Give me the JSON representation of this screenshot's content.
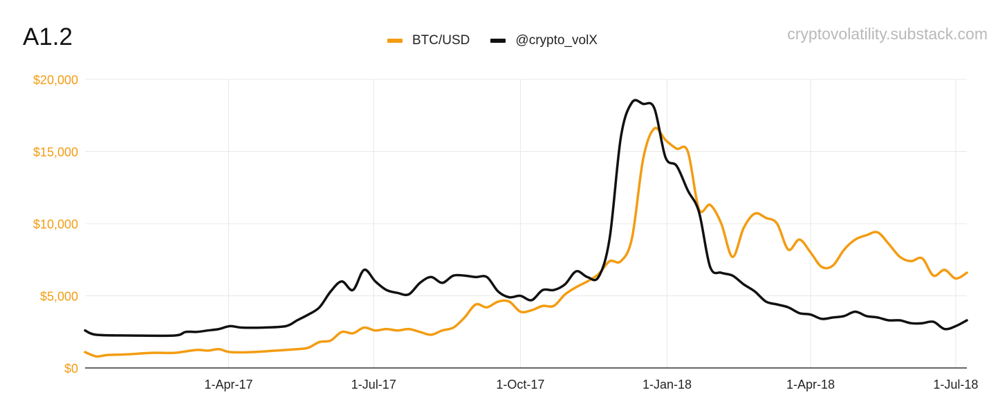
{
  "chart_data": {
    "type": "line",
    "title": "A1.2",
    "watermark": "cryptovolatility.substack.com",
    "xlabel": "",
    "ylabel": "",
    "x_ticks": [
      "1-Apr-17",
      "1-Jul-17",
      "1-Oct-17",
      "1-Jan-18",
      "1-Apr-18",
      "1-Jul-18"
    ],
    "y_ticks": [
      "$0",
      "$5,000",
      "$10,000",
      "$15,000",
      "$20,000"
    ],
    "xlim": [
      "2017-01-01",
      "2018-07-08"
    ],
    "ylim": [
      0,
      20000
    ],
    "legend_position": "top",
    "grid": true,
    "series": [
      {
        "name": "BTC/USD",
        "color": "#f39c12",
        "points": [
          [
            "2017-01-01",
            1100
          ],
          [
            "2017-01-08",
            800
          ],
          [
            "2017-01-15",
            900
          ],
          [
            "2017-01-29",
            950
          ],
          [
            "2017-02-12",
            1050
          ],
          [
            "2017-02-26",
            1050
          ],
          [
            "2017-03-12",
            1250
          ],
          [
            "2017-03-19",
            1200
          ],
          [
            "2017-03-26",
            1300
          ],
          [
            "2017-04-02",
            1100
          ],
          [
            "2017-04-16",
            1100
          ],
          [
            "2017-04-30",
            1200
          ],
          [
            "2017-05-14",
            1300
          ],
          [
            "2017-05-21",
            1400
          ],
          [
            "2017-05-28",
            1800
          ],
          [
            "2017-06-04",
            1900
          ],
          [
            "2017-06-11",
            2500
          ],
          [
            "2017-06-18",
            2400
          ],
          [
            "2017-06-25",
            2800
          ],
          [
            "2017-07-02",
            2600
          ],
          [
            "2017-07-09",
            2700
          ],
          [
            "2017-07-16",
            2600
          ],
          [
            "2017-07-23",
            2700
          ],
          [
            "2017-07-30",
            2500
          ],
          [
            "2017-08-06",
            2300
          ],
          [
            "2017-08-13",
            2600
          ],
          [
            "2017-08-20",
            2800
          ],
          [
            "2017-08-27",
            3500
          ],
          [
            "2017-09-03",
            4400
          ],
          [
            "2017-09-10",
            4200
          ],
          [
            "2017-09-17",
            4600
          ],
          [
            "2017-09-24",
            4600
          ],
          [
            "2017-10-01",
            3900
          ],
          [
            "2017-10-08",
            4000
          ],
          [
            "2017-10-15",
            4300
          ],
          [
            "2017-10-22",
            4300
          ],
          [
            "2017-10-29",
            5100
          ],
          [
            "2017-11-05",
            5600
          ],
          [
            "2017-11-12",
            6000
          ],
          [
            "2017-11-19",
            6500
          ],
          [
            "2017-11-26",
            7400
          ],
          [
            "2017-12-03",
            7400
          ],
          [
            "2017-12-10",
            9000
          ],
          [
            "2017-12-17",
            14500
          ],
          [
            "2017-12-24",
            16600
          ],
          [
            "2017-12-31",
            15800
          ],
          [
            "2018-01-07",
            15200
          ],
          [
            "2018-01-14",
            15000
          ],
          [
            "2018-01-21",
            11000
          ],
          [
            "2018-01-28",
            11300
          ],
          [
            "2018-02-04",
            10000
          ],
          [
            "2018-02-11",
            7700
          ],
          [
            "2018-02-18",
            9700
          ],
          [
            "2018-02-25",
            10700
          ],
          [
            "2018-03-04",
            10400
          ],
          [
            "2018-03-11",
            10000
          ],
          [
            "2018-03-18",
            8200
          ],
          [
            "2018-03-25",
            8900
          ],
          [
            "2018-04-01",
            8000
          ],
          [
            "2018-04-08",
            7000
          ],
          [
            "2018-04-15",
            7100
          ],
          [
            "2018-04-22",
            8200
          ],
          [
            "2018-04-29",
            8900
          ],
          [
            "2018-05-06",
            9200
          ],
          [
            "2018-05-13",
            9400
          ],
          [
            "2018-05-20",
            8600
          ],
          [
            "2018-05-27",
            7700
          ],
          [
            "2018-06-03",
            7400
          ],
          [
            "2018-06-10",
            7600
          ],
          [
            "2018-06-17",
            6400
          ],
          [
            "2018-06-24",
            6800
          ],
          [
            "2018-07-01",
            6200
          ],
          [
            "2018-07-08",
            6600
          ]
        ]
      },
      {
        "name": "@crypto_volX",
        "color": "#111111",
        "points": [
          [
            "2017-01-01",
            2600
          ],
          [
            "2017-01-08",
            2300
          ],
          [
            "2017-01-29",
            2250
          ],
          [
            "2017-02-26",
            2250
          ],
          [
            "2017-03-05",
            2500
          ],
          [
            "2017-03-12",
            2500
          ],
          [
            "2017-03-19",
            2600
          ],
          [
            "2017-03-26",
            2700
          ],
          [
            "2017-04-02",
            2900
          ],
          [
            "2017-04-09",
            2800
          ],
          [
            "2017-04-23",
            2800
          ],
          [
            "2017-05-07",
            2900
          ],
          [
            "2017-05-14",
            3300
          ],
          [
            "2017-05-21",
            3700
          ],
          [
            "2017-05-28",
            4200
          ],
          [
            "2017-06-04",
            5300
          ],
          [
            "2017-06-11",
            6000
          ],
          [
            "2017-06-18",
            5400
          ],
          [
            "2017-06-25",
            6800
          ],
          [
            "2017-07-02",
            6000
          ],
          [
            "2017-07-09",
            5400
          ],
          [
            "2017-07-16",
            5200
          ],
          [
            "2017-07-23",
            5100
          ],
          [
            "2017-07-30",
            5900
          ],
          [
            "2017-08-06",
            6300
          ],
          [
            "2017-08-13",
            5900
          ],
          [
            "2017-08-20",
            6400
          ],
          [
            "2017-08-27",
            6400
          ],
          [
            "2017-09-03",
            6300
          ],
          [
            "2017-09-10",
            6300
          ],
          [
            "2017-09-17",
            5300
          ],
          [
            "2017-09-24",
            4900
          ],
          [
            "2017-10-01",
            5000
          ],
          [
            "2017-10-08",
            4700
          ],
          [
            "2017-10-15",
            5400
          ],
          [
            "2017-10-22",
            5400
          ],
          [
            "2017-10-29",
            5800
          ],
          [
            "2017-11-05",
            6700
          ],
          [
            "2017-11-12",
            6300
          ],
          [
            "2017-11-19",
            6300
          ],
          [
            "2017-11-26",
            9000
          ],
          [
            "2017-12-03",
            16000
          ],
          [
            "2017-12-10",
            18400
          ],
          [
            "2017-12-17",
            18300
          ],
          [
            "2017-12-24",
            18000
          ],
          [
            "2017-12-31",
            14600
          ],
          [
            "2018-01-07",
            14000
          ],
          [
            "2018-01-14",
            12300
          ],
          [
            "2018-01-21",
            10800
          ],
          [
            "2018-01-28",
            7000
          ],
          [
            "2018-02-04",
            6600
          ],
          [
            "2018-02-11",
            6400
          ],
          [
            "2018-02-18",
            5800
          ],
          [
            "2018-02-25",
            5300
          ],
          [
            "2018-03-04",
            4600
          ],
          [
            "2018-03-11",
            4400
          ],
          [
            "2018-03-18",
            4200
          ],
          [
            "2018-03-25",
            3800
          ],
          [
            "2018-04-01",
            3700
          ],
          [
            "2018-04-08",
            3400
          ],
          [
            "2018-04-15",
            3500
          ],
          [
            "2018-04-22",
            3600
          ],
          [
            "2018-04-29",
            3900
          ],
          [
            "2018-05-06",
            3600
          ],
          [
            "2018-05-13",
            3500
          ],
          [
            "2018-05-20",
            3300
          ],
          [
            "2018-05-27",
            3300
          ],
          [
            "2018-06-03",
            3100
          ],
          [
            "2018-06-10",
            3100
          ],
          [
            "2018-06-17",
            3200
          ],
          [
            "2018-06-24",
            2700
          ],
          [
            "2018-07-01",
            2900
          ],
          [
            "2018-07-08",
            3300
          ]
        ]
      }
    ]
  }
}
